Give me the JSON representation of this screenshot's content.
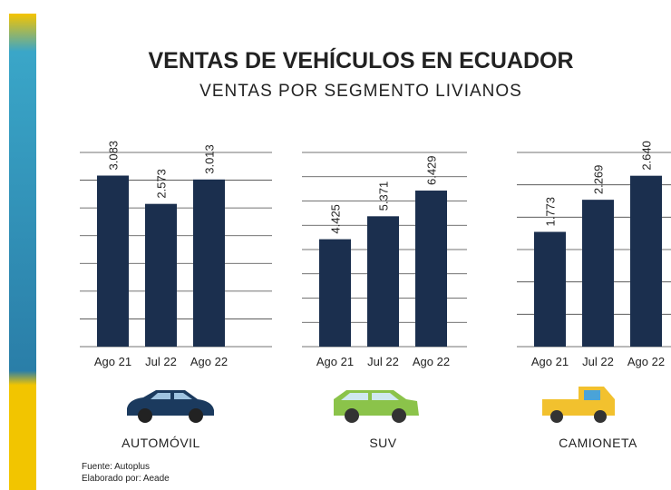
{
  "title": "VENTAS DE VEHÍCULOS EN ECUADOR",
  "subtitle": "VENTAS POR SEGMENTO LIVIANOS",
  "source": [
    "Fuente: Autoplus",
    "Elaborado por: Aeade"
  ],
  "chart_data": [
    {
      "type": "bar",
      "name": "AUTOMÓVIL",
      "categories": [
        "Ago 21",
        "Jul 22",
        "Ago 22"
      ],
      "values": [
        3083,
        2573,
        3013
      ],
      "value_labels": [
        "3.083",
        "2.573",
        "3.013"
      ],
      "color": "#1b2f4e",
      "ylim": [
        0,
        3500
      ],
      "yticks": [
        0,
        500,
        1000,
        1500,
        2000,
        2500,
        3000,
        3500
      ],
      "grid": true
    },
    {
      "type": "bar",
      "name": "SUV",
      "categories": [
        "Ago 21",
        "Jul 22",
        "Ago 22"
      ],
      "values": [
        4425,
        5371,
        6429
      ],
      "value_labels": [
        "4.425",
        "5.371",
        "6.429"
      ],
      "color": "#1b2f4e",
      "ylim": [
        0,
        8000
      ],
      "yticks": [
        0,
        1000,
        2000,
        3000,
        4000,
        5000,
        6000,
        7000,
        8000
      ],
      "grid": true
    },
    {
      "type": "bar",
      "name": "CAMIONETA",
      "categories": [
        "Ago 21",
        "Jul 22",
        "Ago 22"
      ],
      "values": [
        1773,
        2269,
        2640
      ],
      "value_labels": [
        "1.773",
        "2.269",
        "2.640"
      ],
      "color": "#1b2f4e",
      "ylim": [
        0,
        3000
      ],
      "yticks": [
        0,
        500,
        1000,
        1500,
        2000,
        2500,
        3000
      ],
      "grid": true
    }
  ]
}
